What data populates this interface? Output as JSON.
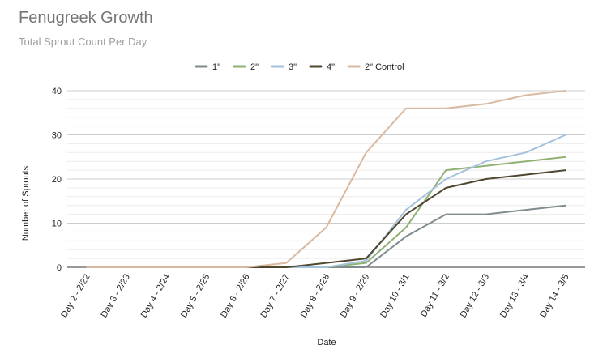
{
  "chart_data": {
    "type": "line",
    "title": "Fenugreek Growth",
    "subtitle": "Total Sprout Count Per Day",
    "xlabel": "Date",
    "ylabel": "Number of Sprouts",
    "ylim": [
      0,
      40
    ],
    "yticks": [
      "0",
      "10",
      "20",
      "30",
      "40"
    ],
    "grid": true,
    "legend_position": "top",
    "categories": [
      "Day 2 - 2/22",
      "Day 3 - 2/23",
      "Day 4 - 2/24",
      "Day 5 - 2/25",
      "Day 6 - 2/26",
      "Day 7 - 2/27",
      "Day 8 - 2/28",
      "Day 9 - 2/29",
      "Day 10 - 3/1",
      "Day 11 - 3/2",
      "Day 12 - 3/3",
      "Day 13 - 3/4",
      "Day 14 - 3/5"
    ],
    "series": [
      {
        "name": "1\"",
        "color": "#7f8c8d",
        "values": [
          0,
          0,
          0,
          0,
          0,
          0,
          0,
          0,
          7,
          12,
          12,
          13,
          14
        ]
      },
      {
        "name": "2\"",
        "color": "#8fb174",
        "values": [
          0,
          0,
          0,
          0,
          0,
          0,
          0,
          1,
          9,
          22,
          23,
          24,
          25
        ]
      },
      {
        "name": "3\"",
        "color": "#a4c2dc",
        "values": [
          0,
          0,
          0,
          0,
          0,
          0,
          0,
          1.5,
          13,
          20,
          24,
          26,
          30
        ]
      },
      {
        "name": "4\"",
        "color": "#4f4630",
        "values": [
          0,
          0,
          0,
          0,
          0,
          0,
          1,
          2,
          12,
          18,
          20,
          21,
          22
        ]
      },
      {
        "name": "2\" Control",
        "color": "#d9b9a0",
        "values": [
          0,
          0,
          0,
          0,
          0,
          1,
          9,
          26,
          36,
          36,
          37,
          39,
          40
        ]
      }
    ]
  }
}
